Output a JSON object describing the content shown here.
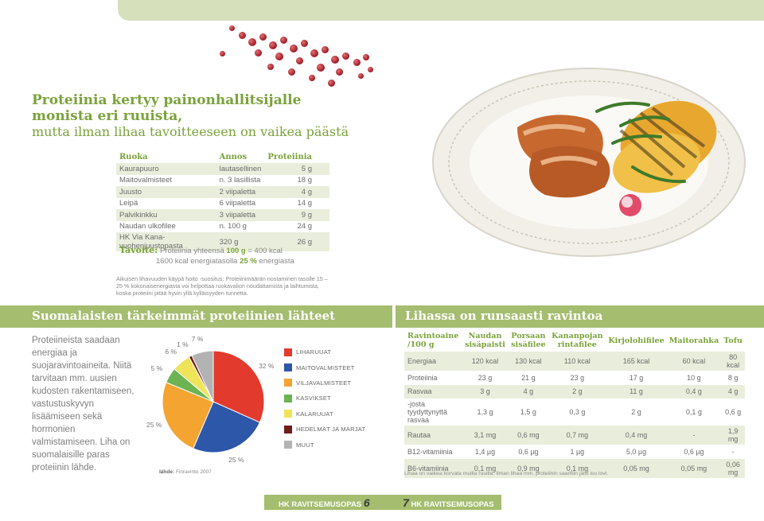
{
  "title": {
    "line1": "Proteiinia kertyy painonhallitsijalle",
    "line2": "monista eri ruuista,",
    "line3": "mutta ilman lihaa tavoitteeseen on vaikea päästä"
  },
  "protein_table": {
    "headers": [
      "Ruoka",
      "Annos",
      "Proteiinia"
    ],
    "rows": [
      [
        "Kaurapuuro",
        "lautasellinen",
        "5 g"
      ],
      [
        "Maitovalmisteet",
        "n. 3 lasillista",
        "18 g"
      ],
      [
        "Juusto",
        "2 viipaletta",
        "4 g"
      ],
      [
        "Leipä",
        "6 viipaletta",
        "14 g"
      ],
      [
        "Palvikinkku",
        "3 viipaletta",
        "9 g"
      ],
      [
        "Naudan ulkofilee",
        "n. 100 g",
        "24 g"
      ],
      [
        "HK Via Kana-vuohenjuustopasta",
        "320 g",
        "26 g"
      ]
    ]
  },
  "goal": {
    "label": "Tavoite:",
    "line1_pre": "Proteiinia yhteensä",
    "line1_bold": "100 g",
    "line1_post": "= 400 kcal",
    "line2_pre": "1600 kcal energiatasolla",
    "line2_bold": "25 %",
    "line2_post": "energiasta"
  },
  "note": "Aikuisen lihavuuden käypä hoito -suositus: Proteiinimäärän nostaminen tasolle 15 – 25 % kokonaisenergiasta voi helpottaa ruokavalion noudattamista ja laihtumista, koska proteiini pitää hyvin yllä kylläisyyden tunnetta.",
  "left_band": "Suomalaisten tärkeimmät proteiinien lähteet",
  "right_band": "Lihassa on runsaasti ravintoa",
  "side_text": "Proteiineista saadaan energiaa ja suojaravintoaineita. Niitä tarvitaan mm. uusien kudosten rakentamiseen, vastustuskyvyn lisäämiseen sekä hormonien valmistamiseen. Liha on suomalaisille paras proteiinin lähde.",
  "chart_data": {
    "type": "pie",
    "categories": [
      "LIHARUUAT",
      "MAITOVALMISTEET",
      "VILJAVALMISTEET",
      "KASVIKSET",
      "KALARUUAT",
      "HEDELMÄT JA MARJAT",
      "MUUT"
    ],
    "values": [
      32,
      25,
      25,
      5,
      6,
      1,
      7
    ],
    "value_labels": [
      "32 %",
      "25 %",
      "25 %",
      "5 %",
      "6 %",
      "1 %",
      "7 %"
    ],
    "colors": [
      "#e33a2e",
      "#2d57a8",
      "#f4a431",
      "#6cb352",
      "#eee45a",
      "#6e1c1c",
      "#b3b3b3"
    ],
    "legend_position": "right"
  },
  "source": {
    "label": "lähde:",
    "text": "Finravinto 2007"
  },
  "nutrition_table": {
    "headers": [
      "Ravintoaine /100 g",
      "Naudan sisäpaisti",
      "Porsaan sisäfilee",
      "Kananpojan rintafilee",
      "Kirjolohifilee",
      "Maitorahka",
      "Tofu"
    ],
    "rows": [
      [
        "Energiaa",
        "120 kcal",
        "130 kcal",
        "110 kcal",
        "165 kcal",
        "60 kcal",
        "80 kcal"
      ],
      [
        "Proteiinia",
        "23 g",
        "21 g",
        "23 g",
        "17 g",
        "10 g",
        "8 g"
      ],
      [
        "Rasvaa",
        "3 g",
        "4 g",
        "2 g",
        "11 g",
        "0,4 g",
        "4 g"
      ],
      [
        "-josta tyydyttynyttä rasvaa",
        "1,3 g",
        "1,5 g",
        "0,3 g",
        "2 g",
        "0,1 g",
        "0,6 g"
      ],
      [
        "Rautaa",
        "3,1 mg",
        "0,6 mg",
        "0,7 mg",
        "0,4 mg",
        "-",
        "1,9 mg"
      ],
      [
        "B12-vitamiinia",
        "1,4 µg",
        "0,6 µg",
        "1 µg",
        "5,0 µg",
        "0,6 µg",
        "-"
      ],
      [
        "B6-vitamiinia",
        "0,1 mg",
        "0,9 mg",
        "0,1 mg",
        "0,05 mg",
        "0,05 mg",
        "0,06 mg"
      ]
    ]
  },
  "nutrition_note": "Lihaa on vaikea korvata muilla ruuilla. Ilman lihaa mm. proteiinin saantiin jäisi iso lovi.",
  "footer": {
    "left_text": "HK RAVITSEMUSOPAS",
    "left_num": "6",
    "right_num": "7",
    "right_text": "HK RAVITSEMUSOPAS"
  }
}
